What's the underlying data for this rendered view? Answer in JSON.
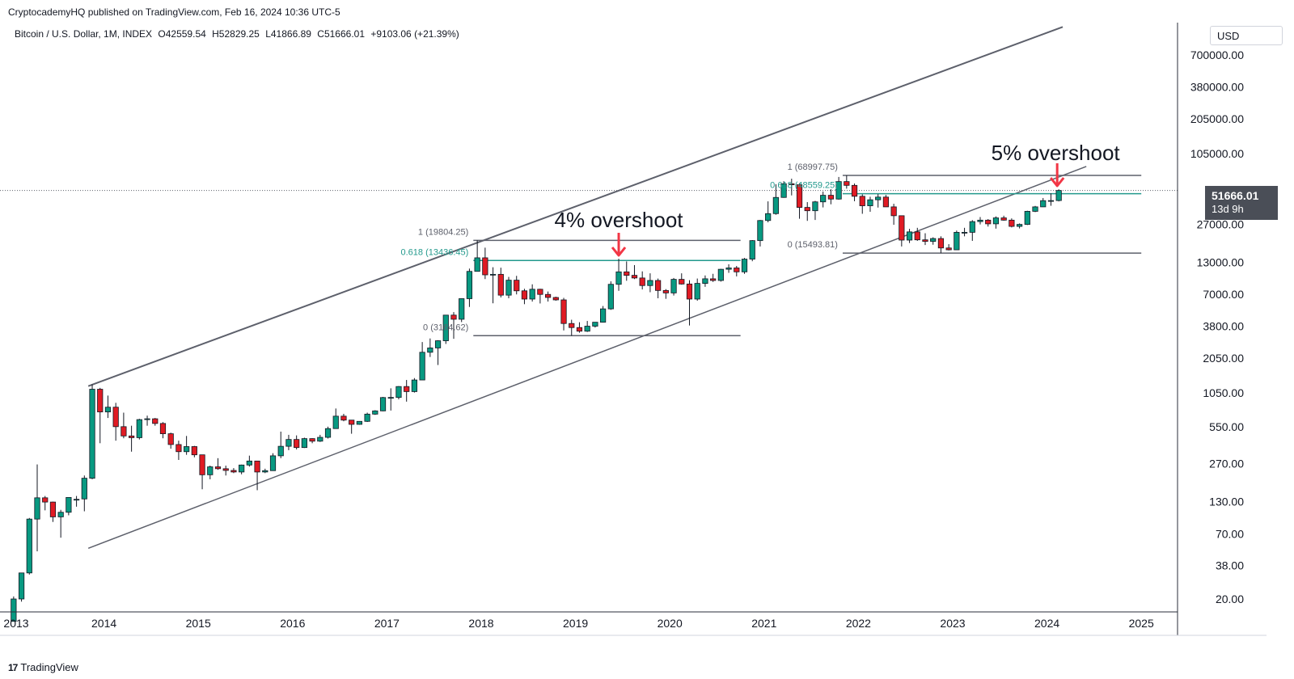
{
  "header": {
    "publisher_text": "CryptocademyHQ published on TradingView.com, Feb 16, 2024 10:36 UTC-5"
  },
  "symbol": {
    "name": "Bitcoin / U.S. Dollar, 1M, INDEX",
    "open": "O42559.54",
    "high": "H52829.25",
    "low": "L41866.89",
    "close": "C51666.01",
    "change": "+9103.06 (+21.39%)"
  },
  "toolbar": {
    "currency_label": "USD"
  },
  "current_price": {
    "price": "51666.01",
    "countdown": "13d 9h"
  },
  "footer": {
    "logo_text": "17",
    "brand": "TradingView"
  },
  "colors": {
    "up": "#089981",
    "down": "#e01b24",
    "channel": "#5d606b",
    "fib_teal": "#22998c",
    "arrow": "#f23645"
  },
  "annotations": {
    "overshoot_2019": "4% overshoot",
    "overshoot_2024": "5% overshoot"
  },
  "chart_data": {
    "type": "candlestick",
    "title": "",
    "scale": "logarithmic",
    "ylim": [
      15,
      1200000
    ],
    "x_tick_labels": [
      "2013",
      "2014",
      "2015",
      "2016",
      "2017",
      "2018",
      "2019",
      "2020",
      "2021",
      "2022",
      "2023",
      "2024",
      "2025"
    ],
    "y_tick_labels": [
      "700000.00",
      "380000.00",
      "205000.00",
      "105000.00",
      "51666.01",
      "27000.00",
      "13000.00",
      "7000.00",
      "3800.00",
      "2050.00",
      "1050.00",
      "550.00",
      "270.00",
      "130.00",
      "70.00",
      "38.00",
      "20.00"
    ],
    "y_tick_values": [
      700000,
      380000,
      205000,
      105000,
      51666.01,
      27000,
      13000,
      7000,
      3800,
      2050,
      1050,
      550,
      270,
      130,
      70,
      38,
      20
    ],
    "candles": [
      {
        "date": "2013-01",
        "o": 13,
        "h": 21,
        "l": 13,
        "c": 20
      },
      {
        "date": "2013-02",
        "o": 20,
        "h": 33,
        "l": 19,
        "c": 33
      },
      {
        "date": "2013-03",
        "o": 33,
        "h": 95,
        "l": 32,
        "c": 93
      },
      {
        "date": "2013-04",
        "o": 93,
        "h": 266,
        "l": 50,
        "c": 140
      },
      {
        "date": "2013-05",
        "o": 140,
        "h": 145,
        "l": 110,
        "c": 129
      },
      {
        "date": "2013-06",
        "o": 129,
        "h": 130,
        "l": 88,
        "c": 97
      },
      {
        "date": "2013-07",
        "o": 97,
        "h": 111,
        "l": 65,
        "c": 106
      },
      {
        "date": "2013-08",
        "o": 106,
        "h": 127,
        "l": 100,
        "c": 141
      },
      {
        "date": "2013-09",
        "o": 135,
        "h": 145,
        "l": 118,
        "c": 136
      },
      {
        "date": "2013-10",
        "o": 137,
        "h": 215,
        "l": 108,
        "c": 204
      },
      {
        "date": "2013-11",
        "o": 204,
        "h": 1240,
        "l": 200,
        "c": 1130
      },
      {
        "date": "2013-12",
        "o": 1130,
        "h": 1160,
        "l": 400,
        "c": 730
      },
      {
        "date": "2014-01",
        "o": 730,
        "h": 1000,
        "l": 650,
        "c": 800
      },
      {
        "date": "2014-02",
        "o": 800,
        "h": 870,
        "l": 420,
        "c": 550
      },
      {
        "date": "2014-03",
        "o": 550,
        "h": 720,
        "l": 440,
        "c": 460
      },
      {
        "date": "2014-04",
        "o": 460,
        "h": 560,
        "l": 340,
        "c": 445
      },
      {
        "date": "2014-05",
        "o": 445,
        "h": 640,
        "l": 430,
        "c": 630
      },
      {
        "date": "2014-06",
        "o": 630,
        "h": 680,
        "l": 560,
        "c": 640
      },
      {
        "date": "2014-07",
        "o": 640,
        "h": 650,
        "l": 560,
        "c": 585
      },
      {
        "date": "2014-08",
        "o": 585,
        "h": 600,
        "l": 440,
        "c": 480
      },
      {
        "date": "2014-09",
        "o": 480,
        "h": 490,
        "l": 360,
        "c": 390
      },
      {
        "date": "2014-10",
        "o": 390,
        "h": 420,
        "l": 290,
        "c": 340
      },
      {
        "date": "2014-11",
        "o": 340,
        "h": 460,
        "l": 320,
        "c": 375
      },
      {
        "date": "2014-12",
        "o": 375,
        "h": 380,
        "l": 305,
        "c": 320
      },
      {
        "date": "2015-01",
        "o": 320,
        "h": 320,
        "l": 165,
        "c": 218
      },
      {
        "date": "2015-02",
        "o": 218,
        "h": 260,
        "l": 200,
        "c": 254
      },
      {
        "date": "2015-03",
        "o": 254,
        "h": 300,
        "l": 240,
        "c": 245
      },
      {
        "date": "2015-04",
        "o": 245,
        "h": 260,
        "l": 215,
        "c": 237
      },
      {
        "date": "2015-05",
        "o": 237,
        "h": 248,
        "l": 225,
        "c": 230
      },
      {
        "date": "2015-06",
        "o": 230,
        "h": 265,
        "l": 220,
        "c": 263
      },
      {
        "date": "2015-07",
        "o": 263,
        "h": 315,
        "l": 255,
        "c": 284
      },
      {
        "date": "2015-08",
        "o": 284,
        "h": 285,
        "l": 162,
        "c": 230
      },
      {
        "date": "2015-09",
        "o": 230,
        "h": 245,
        "l": 225,
        "c": 236
      },
      {
        "date": "2015-10",
        "o": 236,
        "h": 330,
        "l": 235,
        "c": 314
      },
      {
        "date": "2015-11",
        "o": 314,
        "h": 500,
        "l": 300,
        "c": 377
      },
      {
        "date": "2015-12",
        "o": 377,
        "h": 470,
        "l": 350,
        "c": 430
      },
      {
        "date": "2016-01",
        "o": 430,
        "h": 465,
        "l": 355,
        "c": 368
      },
      {
        "date": "2016-02",
        "o": 368,
        "h": 445,
        "l": 365,
        "c": 437
      },
      {
        "date": "2016-03",
        "o": 437,
        "h": 440,
        "l": 400,
        "c": 416
      },
      {
        "date": "2016-04",
        "o": 416,
        "h": 470,
        "l": 410,
        "c": 448
      },
      {
        "date": "2016-05",
        "o": 448,
        "h": 550,
        "l": 438,
        "c": 530
      },
      {
        "date": "2016-06",
        "o": 530,
        "h": 780,
        "l": 530,
        "c": 673
      },
      {
        "date": "2016-07",
        "o": 673,
        "h": 704,
        "l": 610,
        "c": 624
      },
      {
        "date": "2016-08",
        "o": 624,
        "h": 626,
        "l": 480,
        "c": 575
      },
      {
        "date": "2016-09",
        "o": 575,
        "h": 612,
        "l": 570,
        "c": 609
      },
      {
        "date": "2016-10",
        "o": 609,
        "h": 720,
        "l": 602,
        "c": 700
      },
      {
        "date": "2016-11",
        "o": 700,
        "h": 755,
        "l": 690,
        "c": 745
      },
      {
        "date": "2016-12",
        "o": 745,
        "h": 975,
        "l": 740,
        "c": 963
      },
      {
        "date": "2017-01",
        "o": 963,
        "h": 1150,
        "l": 750,
        "c": 965
      },
      {
        "date": "2017-02",
        "o": 965,
        "h": 1200,
        "l": 930,
        "c": 1190
      },
      {
        "date": "2017-03",
        "o": 1190,
        "h": 1350,
        "l": 890,
        "c": 1080
      },
      {
        "date": "2017-04",
        "o": 1080,
        "h": 1400,
        "l": 1060,
        "c": 1350
      },
      {
        "date": "2017-05",
        "o": 1350,
        "h": 2800,
        "l": 1350,
        "c": 2300
      },
      {
        "date": "2017-06",
        "o": 2300,
        "h": 3000,
        "l": 2100,
        "c": 2500
      },
      {
        "date": "2017-07",
        "o": 2500,
        "h": 2900,
        "l": 1800,
        "c": 2870
      },
      {
        "date": "2017-08",
        "o": 2870,
        "h": 4700,
        "l": 2700,
        "c": 4700
      },
      {
        "date": "2017-09",
        "o": 4700,
        "h": 4980,
        "l": 2980,
        "c": 4340
      },
      {
        "date": "2017-10",
        "o": 4340,
        "h": 6470,
        "l": 4110,
        "c": 6450
      },
      {
        "date": "2017-11",
        "o": 6450,
        "h": 11500,
        "l": 5500,
        "c": 10900
      },
      {
        "date": "2017-12",
        "o": 10900,
        "h": 19804.25,
        "l": 10900,
        "c": 14150
      },
      {
        "date": "2018-01",
        "o": 14150,
        "h": 17200,
        "l": 9400,
        "c": 10200
      },
      {
        "date": "2018-02",
        "o": 10200,
        "h": 11800,
        "l": 5900,
        "c": 10300
      },
      {
        "date": "2018-03",
        "o": 10300,
        "h": 11700,
        "l": 6600,
        "c": 6900
      },
      {
        "date": "2018-04",
        "o": 6900,
        "h": 9800,
        "l": 6500,
        "c": 9200
      },
      {
        "date": "2018-05",
        "o": 9200,
        "h": 10000,
        "l": 7000,
        "c": 7500
      },
      {
        "date": "2018-06",
        "o": 7500,
        "h": 7800,
        "l": 5800,
        "c": 6400
      },
      {
        "date": "2018-07",
        "o": 6400,
        "h": 8500,
        "l": 6100,
        "c": 7730
      },
      {
        "date": "2018-08",
        "o": 7730,
        "h": 7800,
        "l": 5880,
        "c": 7000
      },
      {
        "date": "2018-09",
        "o": 7000,
        "h": 7400,
        "l": 6100,
        "c": 6600
      },
      {
        "date": "2018-10",
        "o": 6600,
        "h": 6700,
        "l": 6200,
        "c": 6300
      },
      {
        "date": "2018-11",
        "o": 6300,
        "h": 6550,
        "l": 3500,
        "c": 4000
      },
      {
        "date": "2018-12",
        "o": 4000,
        "h": 4300,
        "l": 3164.62,
        "c": 3700
      },
      {
        "date": "2019-01",
        "o": 3700,
        "h": 4100,
        "l": 3350,
        "c": 3450
      },
      {
        "date": "2019-02",
        "o": 3450,
        "h": 4200,
        "l": 3400,
        "c": 3800
      },
      {
        "date": "2019-03",
        "o": 3800,
        "h": 4100,
        "l": 3700,
        "c": 4100
      },
      {
        "date": "2019-04",
        "o": 4100,
        "h": 5600,
        "l": 4070,
        "c": 5300
      },
      {
        "date": "2019-05",
        "o": 5300,
        "h": 9000,
        "l": 5200,
        "c": 8500
      },
      {
        "date": "2019-06",
        "o": 8500,
        "h": 13900,
        "l": 7500,
        "c": 10800
      },
      {
        "date": "2019-07",
        "o": 10800,
        "h": 13200,
        "l": 9100,
        "c": 10100
      },
      {
        "date": "2019-08",
        "o": 10100,
        "h": 12300,
        "l": 9400,
        "c": 9600
      },
      {
        "date": "2019-09",
        "o": 9600,
        "h": 10900,
        "l": 7700,
        "c": 8300
      },
      {
        "date": "2019-10",
        "o": 8300,
        "h": 10500,
        "l": 7300,
        "c": 9150
      },
      {
        "date": "2019-11",
        "o": 9150,
        "h": 9500,
        "l": 6500,
        "c": 7550
      },
      {
        "date": "2019-12",
        "o": 7550,
        "h": 7750,
        "l": 6430,
        "c": 7200
      },
      {
        "date": "2020-01",
        "o": 7200,
        "h": 9600,
        "l": 6850,
        "c": 9350
      },
      {
        "date": "2020-02",
        "o": 9350,
        "h": 10500,
        "l": 8450,
        "c": 8550
      },
      {
        "date": "2020-03",
        "o": 8550,
        "h": 9200,
        "l": 3850,
        "c": 6400
      },
      {
        "date": "2020-04",
        "o": 6400,
        "h": 9500,
        "l": 6200,
        "c": 8650
      },
      {
        "date": "2020-05",
        "o": 8650,
        "h": 10080,
        "l": 8100,
        "c": 9450
      },
      {
        "date": "2020-06",
        "o": 9450,
        "h": 10400,
        "l": 8900,
        "c": 9150
      },
      {
        "date": "2020-07",
        "o": 9150,
        "h": 11450,
        "l": 8950,
        "c": 11350
      },
      {
        "date": "2020-08",
        "o": 11350,
        "h": 12500,
        "l": 10600,
        "c": 11650
      },
      {
        "date": "2020-09",
        "o": 11650,
        "h": 12100,
        "l": 9900,
        "c": 10800
      },
      {
        "date": "2020-10",
        "o": 10800,
        "h": 14100,
        "l": 10400,
        "c": 13800
      },
      {
        "date": "2020-11",
        "o": 13800,
        "h": 19900,
        "l": 13250,
        "c": 19700
      },
      {
        "date": "2020-12",
        "o": 19700,
        "h": 29300,
        "l": 17600,
        "c": 29000
      },
      {
        "date": "2021-01",
        "o": 29000,
        "h": 41900,
        "l": 28000,
        "c": 33100
      },
      {
        "date": "2021-02",
        "o": 33100,
        "h": 58300,
        "l": 32400,
        "c": 45200
      },
      {
        "date": "2021-03",
        "o": 45200,
        "h": 61700,
        "l": 44900,
        "c": 58800
      },
      {
        "date": "2021-04",
        "o": 58800,
        "h": 64800,
        "l": 47000,
        "c": 57700
      },
      {
        "date": "2021-05",
        "o": 57700,
        "h": 59500,
        "l": 30000,
        "c": 37300
      },
      {
        "date": "2021-06",
        "o": 37300,
        "h": 41300,
        "l": 28800,
        "c": 35000
      },
      {
        "date": "2021-07",
        "o": 35000,
        "h": 42300,
        "l": 29300,
        "c": 41500
      },
      {
        "date": "2021-08",
        "o": 41500,
        "h": 50500,
        "l": 37300,
        "c": 47100
      },
      {
        "date": "2021-09",
        "o": 47100,
        "h": 52900,
        "l": 39600,
        "c": 43800
      },
      {
        "date": "2021-10",
        "o": 43800,
        "h": 67000,
        "l": 43300,
        "c": 61300
      },
      {
        "date": "2021-11",
        "o": 61300,
        "h": 68997.75,
        "l": 53500,
        "c": 57000
      },
      {
        "date": "2021-12",
        "o": 57000,
        "h": 59100,
        "l": 42000,
        "c": 46200
      },
      {
        "date": "2022-01",
        "o": 46200,
        "h": 47900,
        "l": 33000,
        "c": 38500
      },
      {
        "date": "2022-02",
        "o": 38500,
        "h": 45800,
        "l": 34300,
        "c": 43200
      },
      {
        "date": "2022-03",
        "o": 43200,
        "h": 48200,
        "l": 37200,
        "c": 45500
      },
      {
        "date": "2022-04",
        "o": 45500,
        "h": 47400,
        "l": 37600,
        "c": 37700
      },
      {
        "date": "2022-05",
        "o": 37700,
        "h": 40000,
        "l": 26700,
        "c": 31800
      },
      {
        "date": "2022-06",
        "o": 31800,
        "h": 31900,
        "l": 17600,
        "c": 19900
      },
      {
        "date": "2022-07",
        "o": 19900,
        "h": 24700,
        "l": 18800,
        "c": 23300
      },
      {
        "date": "2022-08",
        "o": 23300,
        "h": 25200,
        "l": 19600,
        "c": 20000
      },
      {
        "date": "2022-09",
        "o": 20000,
        "h": 22700,
        "l": 18100,
        "c": 19400
      },
      {
        "date": "2022-10",
        "o": 19400,
        "h": 21000,
        "l": 18200,
        "c": 20500
      },
      {
        "date": "2022-11",
        "o": 20500,
        "h": 21400,
        "l": 15493.81,
        "c": 17100
      },
      {
        "date": "2022-12",
        "o": 17100,
        "h": 18400,
        "l": 16300,
        "c": 16500
      },
      {
        "date": "2023-01",
        "o": 16500,
        "h": 23900,
        "l": 16500,
        "c": 23100
      },
      {
        "date": "2023-02",
        "o": 23100,
        "h": 25200,
        "l": 21400,
        "c": 23100
      },
      {
        "date": "2023-03",
        "o": 23100,
        "h": 29200,
        "l": 19600,
        "c": 28400
      },
      {
        "date": "2023-04",
        "o": 28400,
        "h": 31000,
        "l": 26900,
        "c": 29200
      },
      {
        "date": "2023-05",
        "o": 29200,
        "h": 29800,
        "l": 25800,
        "c": 27200
      },
      {
        "date": "2023-06",
        "o": 27200,
        "h": 31400,
        "l": 24800,
        "c": 30500
      },
      {
        "date": "2023-07",
        "o": 30500,
        "h": 31800,
        "l": 28900,
        "c": 29200
      },
      {
        "date": "2023-08",
        "o": 29200,
        "h": 30200,
        "l": 25400,
        "c": 25900
      },
      {
        "date": "2023-09",
        "o": 25900,
        "h": 27400,
        "l": 24900,
        "c": 26900
      },
      {
        "date": "2023-10",
        "o": 26900,
        "h": 35000,
        "l": 26600,
        "c": 34600
      },
      {
        "date": "2023-11",
        "o": 34600,
        "h": 38400,
        "l": 34100,
        "c": 37700
      },
      {
        "date": "2023-12",
        "o": 37700,
        "h": 44700,
        "l": 37600,
        "c": 42500
      },
      {
        "date": "2024-01",
        "o": 42500,
        "h": 48900,
        "l": 38500,
        "c": 42559.54
      },
      {
        "date": "2024-02",
        "o": 42559.54,
        "h": 52829.25,
        "l": 41866.89,
        "c": 51666.01
      }
    ],
    "fib_2018": {
      "level_1": {
        "label": "1 (19804.25)",
        "value": 19804.25
      },
      "level_0618": {
        "label": "0.618 (13436.45)",
        "value": 13436.45
      },
      "level_0": {
        "label": "0 (3164.62)",
        "value": 3164.62
      }
    },
    "fib_2022": {
      "level_1": {
        "label": "1 (68997.75)",
        "value": 68997.75
      },
      "level_0618": {
        "label": "0.618 (48559.25)",
        "value": 48559.25
      },
      "level_0": {
        "label": "0 (15493.81)",
        "value": 15493.81
      }
    },
    "channel": {
      "upper": [
        {
          "date": "2013-11",
          "value": 1200
        },
        {
          "date": "2024-03",
          "value": 1200000
        }
      ],
      "lower": [
        {
          "date": "2013-11",
          "value": 53
        },
        {
          "date": "2024-06",
          "value": 82000
        }
      ]
    },
    "last_price": 51666.01,
    "grid": false
  }
}
